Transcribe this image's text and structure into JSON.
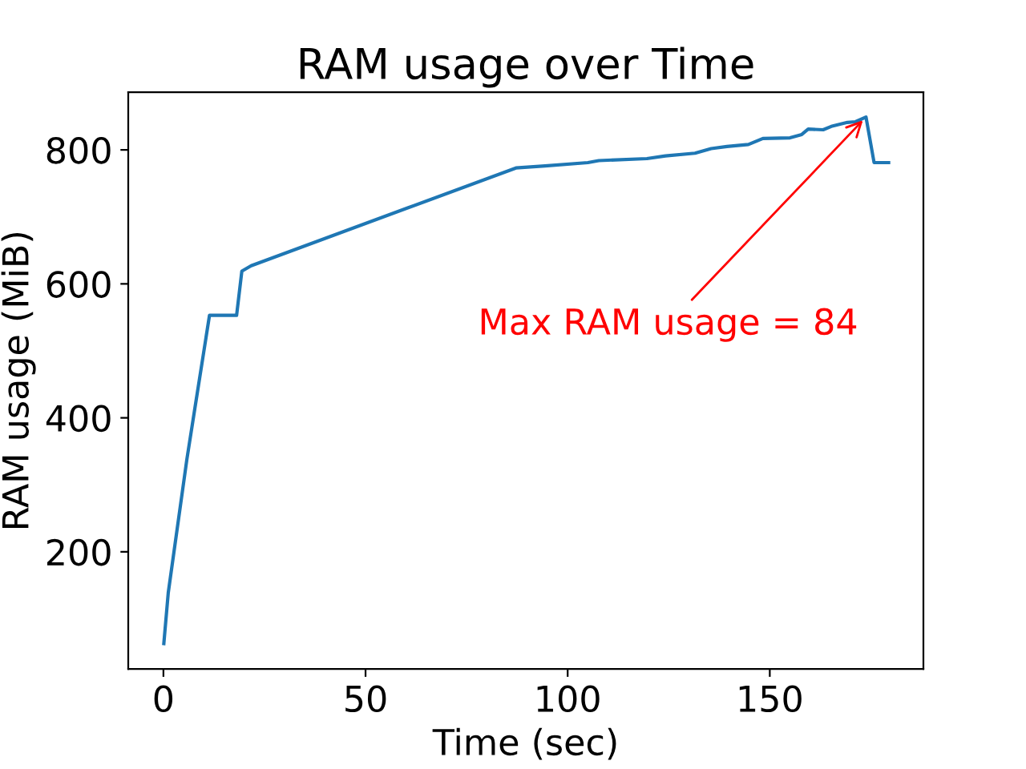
{
  "chart_data": {
    "type": "line",
    "title": "RAM usage over Time",
    "xlabel": "Time (sec)",
    "ylabel": "RAM usage (MiB)",
    "x": [
      0.1,
      1.2,
      5.8,
      7.8,
      11.4,
      18.1,
      19.4,
      21.7,
      87.2,
      94.4,
      105,
      107.7,
      119.6,
      124.2,
      131.5,
      135.5,
      139.4,
      144.7,
      148.3,
      155,
      157.9,
      159.5,
      163.2,
      165.2,
      169.2,
      171.2,
      173.8,
      175.8,
      179.4
    ],
    "series": [
      {
        "color": "#1f77b4",
        "values": [
          63,
          139,
          338,
          415,
          553,
          553,
          619,
          627,
          773,
          776,
          781,
          784,
          787,
          791,
          795,
          802,
          805,
          808,
          817,
          818,
          823,
          831,
          830,
          835,
          841,
          842,
          849,
          781,
          781
        ]
      }
    ],
    "xlim": [
      -8.7,
      188
    ],
    "ylim": [
      25,
      886
    ],
    "xticks": [
      0,
      50,
      100,
      150
    ],
    "yticks": [
      200,
      400,
      600,
      800
    ],
    "grid": false,
    "legend": false,
    "annotations": [
      {
        "text": "Max RAM usage = 84",
        "x": 173.8,
        "y": 849
      }
    ]
  }
}
